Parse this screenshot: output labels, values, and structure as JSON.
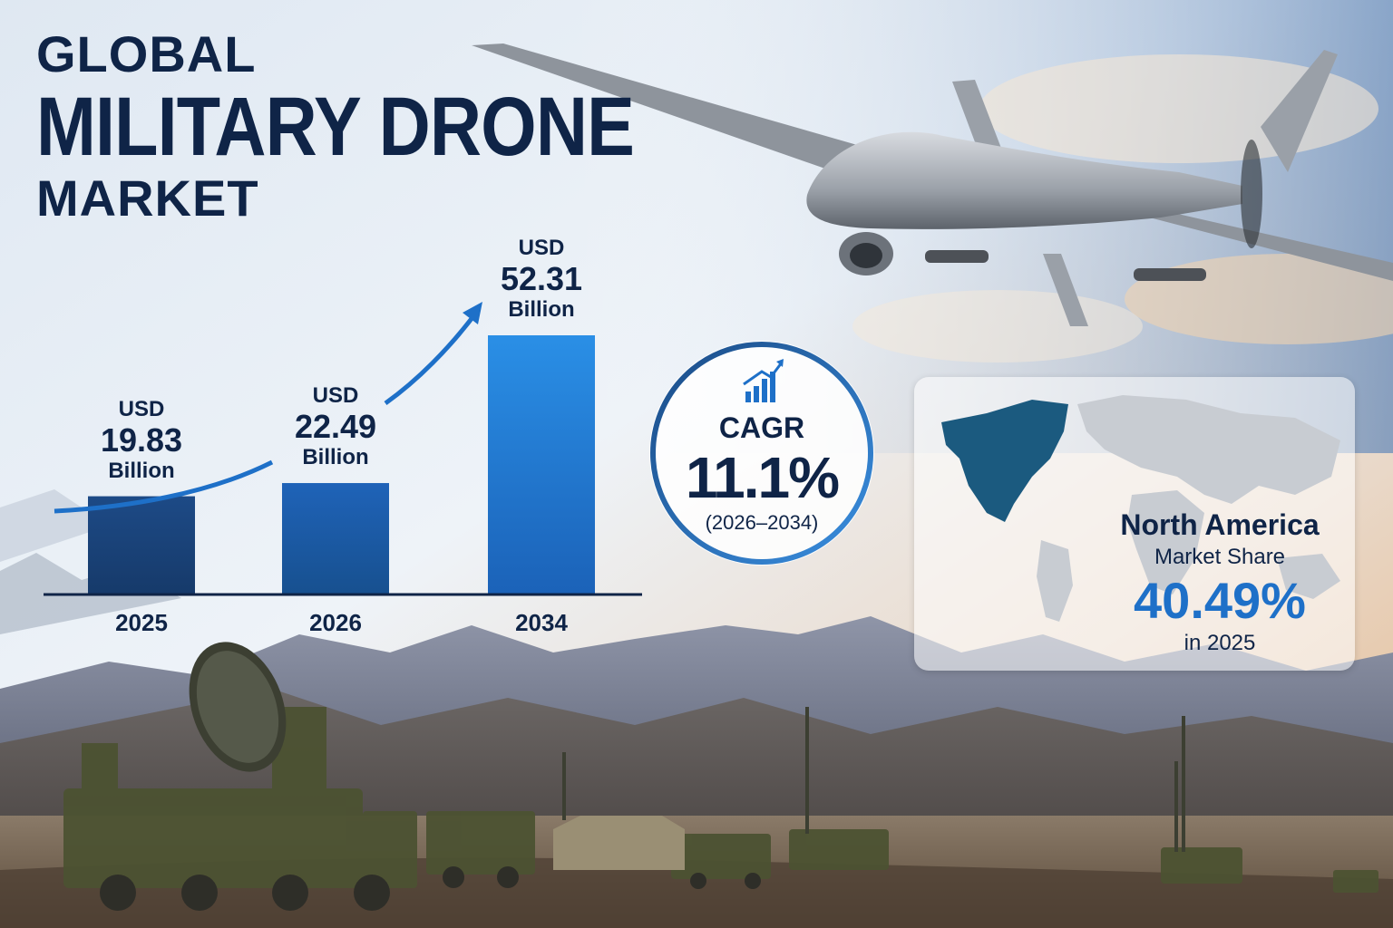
{
  "title": {
    "line1": "GLOBAL",
    "line2": "MILITARY DRONE",
    "line3": "MARKET"
  },
  "chart_data": {
    "type": "bar",
    "categories": [
      "2025",
      "2026",
      "2034"
    ],
    "values": [
      19.83,
      22.49,
      52.31
    ],
    "value_labels": [
      {
        "currency": "USD",
        "value": "19.83",
        "unit": "Billion"
      },
      {
        "currency": "USD",
        "value": "22.49",
        "unit": "Billion"
      },
      {
        "currency": "USD",
        "value": "52.31",
        "unit": "Billion"
      }
    ],
    "ylim": [
      0,
      60
    ],
    "grid": false,
    "xlabel": "",
    "ylabel": ""
  },
  "cagr": {
    "label": "CAGR",
    "value": "11.1%",
    "period": "(2026–2034)"
  },
  "region": {
    "name": "North America",
    "label": "Market Share",
    "value": "40.49%",
    "year": "in 2025"
  },
  "colors": {
    "title": "#0f2447",
    "accent": "#1e70c8",
    "bar_dark": "#173f72",
    "bar_light": "#1e88e0"
  },
  "icons": [
    "bar-growth-icon",
    "world-map-icon",
    "trend-arrow-icon"
  ]
}
